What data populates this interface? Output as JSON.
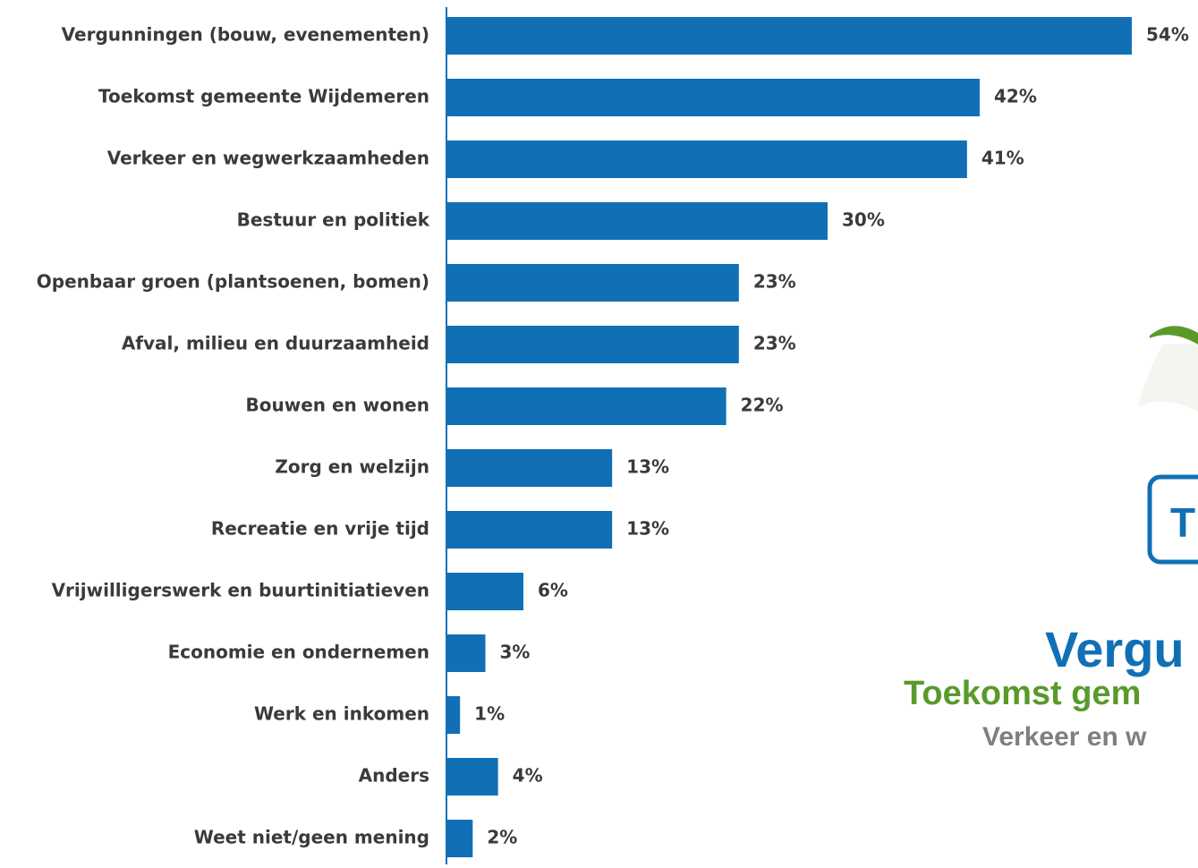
{
  "chart_data": {
    "type": "barh",
    "categories": [
      "Vergunningen (bouw, evenementen)",
      "Toekomst gemeente Wijdemeren",
      "Verkeer en wegwerkzaamheden",
      "Bestuur en politiek",
      "Openbaar groen (plantsoenen, bomen)",
      "Afval, milieu en duurzaamheid",
      "Bouwen en wonen",
      "Zorg en welzijn",
      "Recreatie en vrije tijd",
      "Vrijwilligerswerk en buurtinitiatieven",
      "Economie en ondernemen",
      "Werk en inkomen",
      "Anders",
      "Weet niet/geen mening"
    ],
    "values": [
      54,
      42,
      41,
      30,
      23,
      23,
      22,
      13,
      13,
      6,
      3,
      1,
      4,
      2
    ],
    "value_labels": [
      "54%",
      "42%",
      "41%",
      "30%",
      "23%",
      "23%",
      "22%",
      "13%",
      "13%",
      "6%",
      "3%",
      "1%",
      "4%",
      "2%"
    ],
    "color": "#1170b5",
    "xlim": [
      0,
      54
    ],
    "annotations": [
      "T",
      "Vergu",
      "Toekomst gem",
      "Verkeer en w"
    ]
  }
}
